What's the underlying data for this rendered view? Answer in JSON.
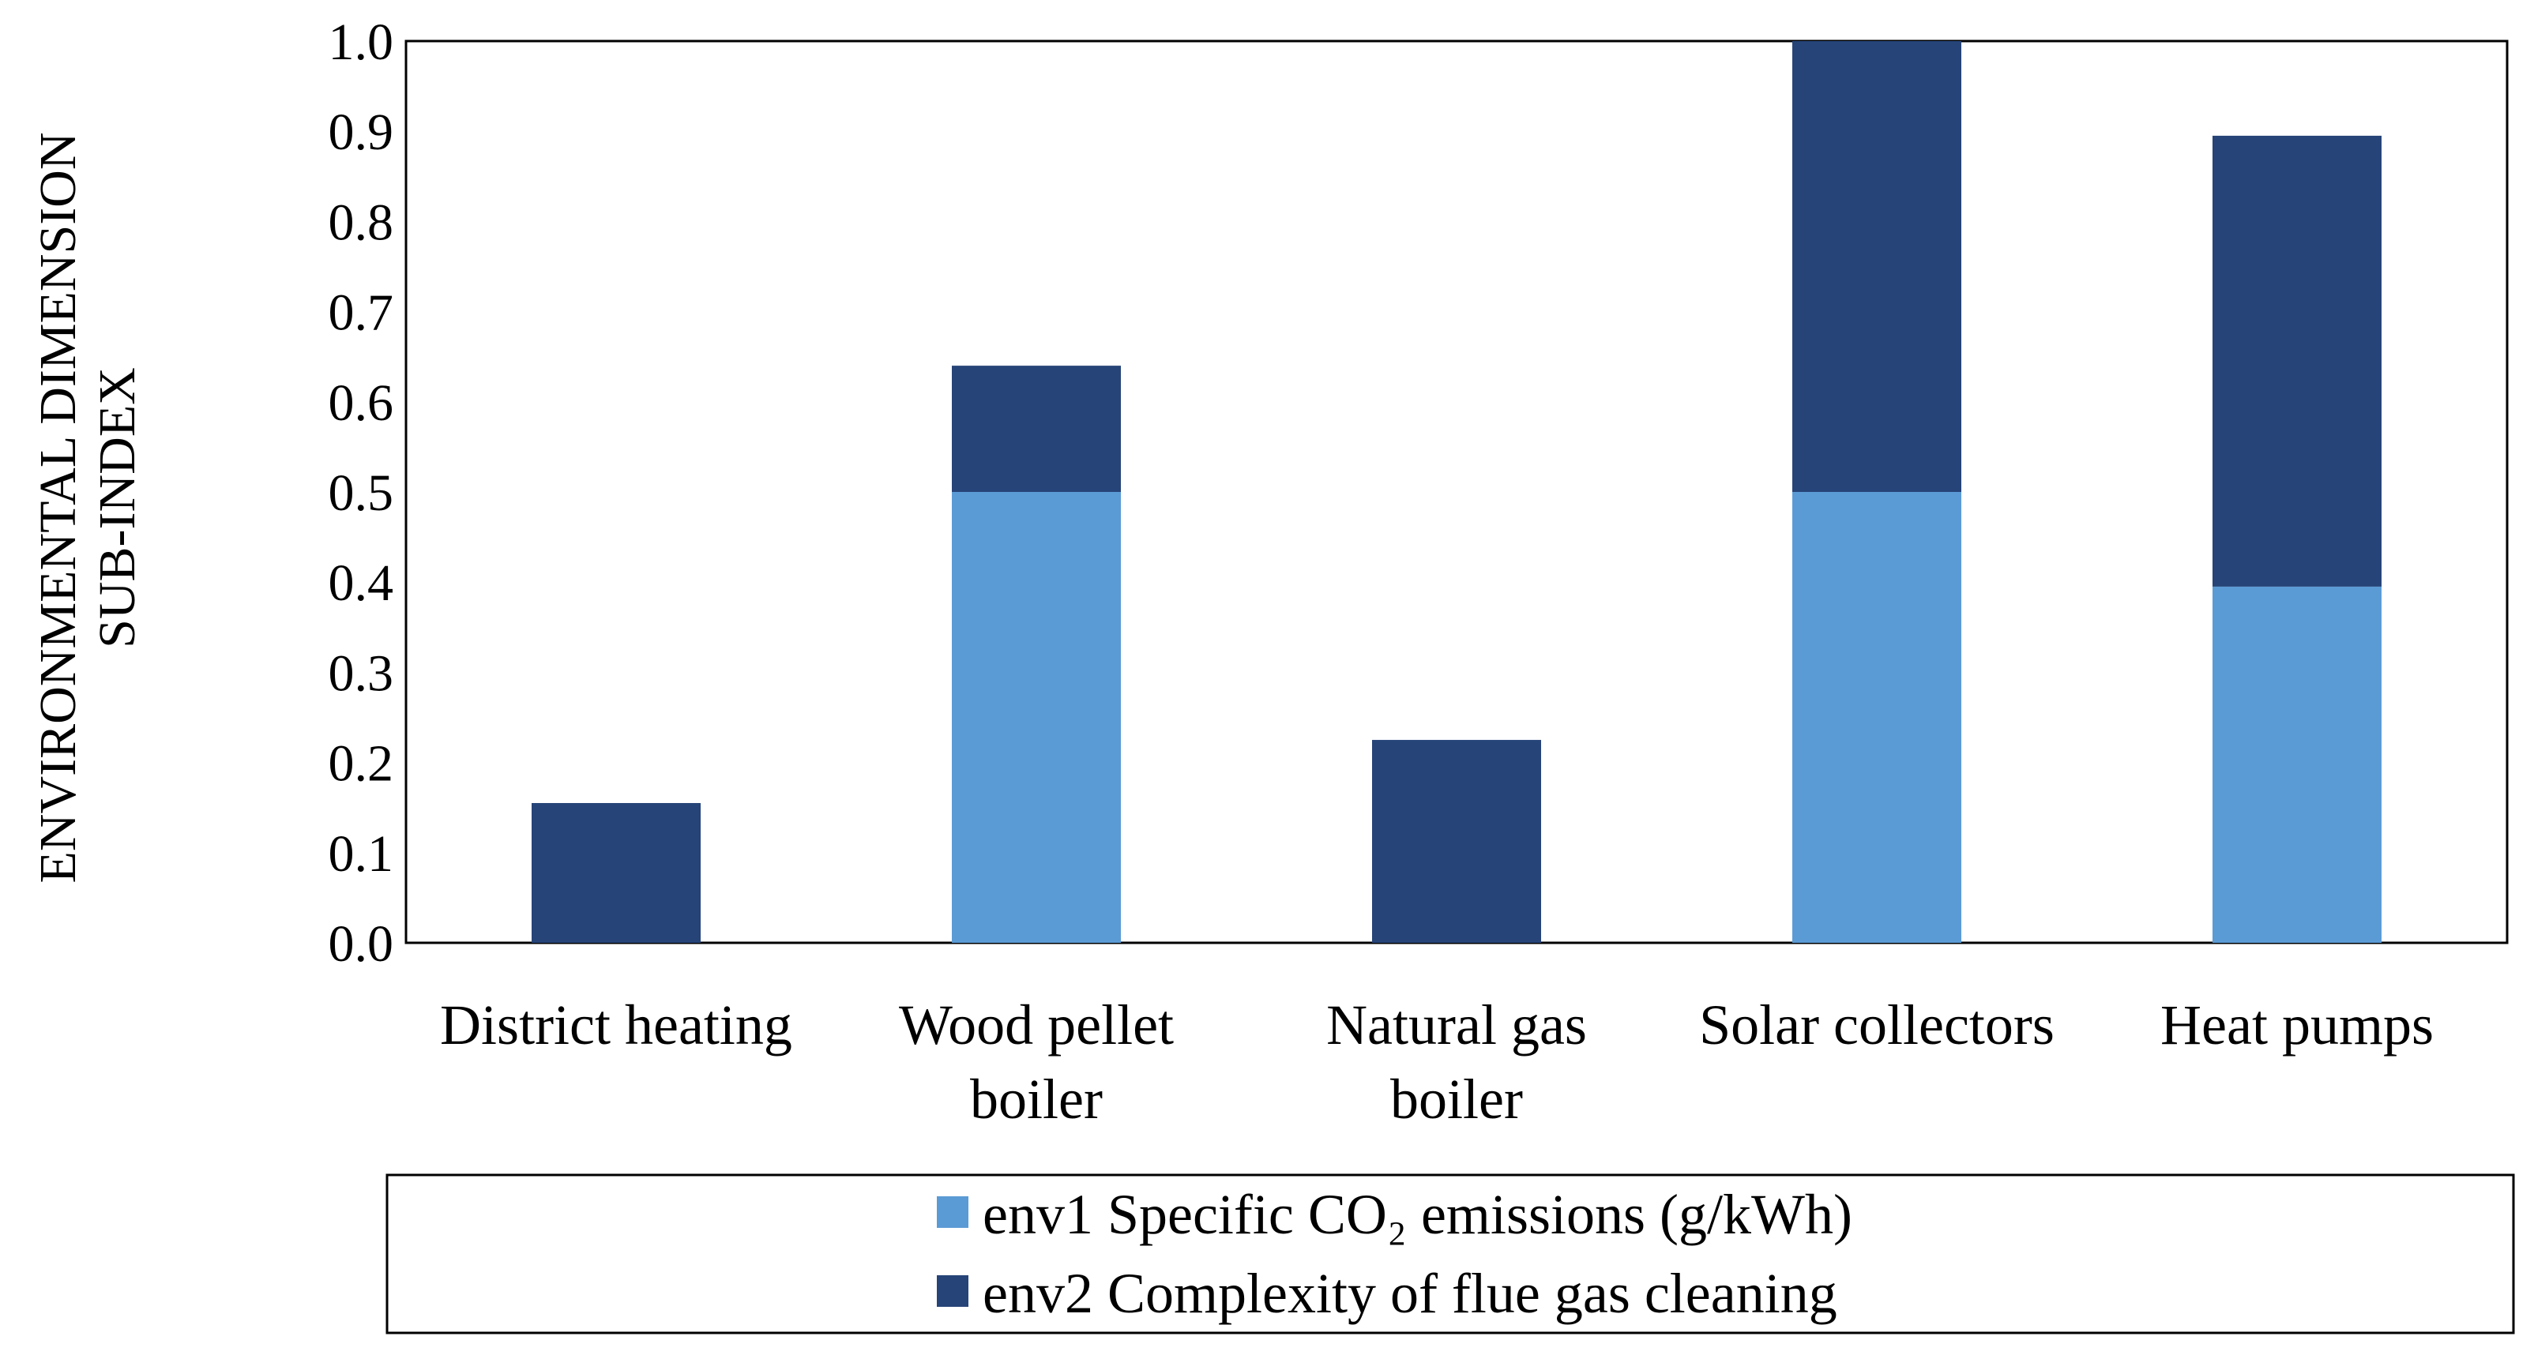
{
  "chart_data": {
    "type": "bar",
    "stacked": true,
    "title": "",
    "xlabel": "",
    "ylabel": [
      "ENVIRONMENTAL DIMENSION",
      "SUB-INDEX"
    ],
    "ylim": [
      0,
      1.0
    ],
    "yticks": [
      "0.0",
      "0.1",
      "0.2",
      "0.3",
      "0.4",
      "0.5",
      "0.6",
      "0.7",
      "0.8",
      "0.9",
      "1.0"
    ],
    "categories": [
      [
        "District heating"
      ],
      [
        "Wood pellet",
        "boiler"
      ],
      [
        "Natural gas",
        "boiler"
      ],
      [
        "Solar collectors"
      ],
      [
        "Heat pumps"
      ]
    ],
    "series": [
      {
        "name": "env1 Specific CO₂ emissions (g/kWh)",
        "color": "#5B9BD5",
        "values": [
          0.0,
          0.5,
          0.0,
          0.5,
          0.395
        ]
      },
      {
        "name": "env2 Complexity of flue gas cleaning",
        "color": "#264478",
        "values": [
          0.155,
          0.14,
          0.225,
          0.5,
          0.5
        ]
      }
    ],
    "legend_position": "bottom"
  }
}
